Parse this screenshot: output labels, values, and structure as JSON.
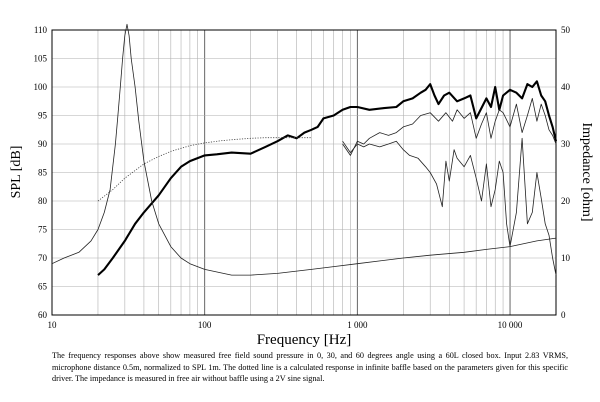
{
  "chart_data": {
    "type": "line",
    "xlabel": "Frequency [Hz]",
    "ylabel": "SPL [dB]",
    "y2label": "Impedance [ohm]",
    "x_scale": "log",
    "xlim": [
      10,
      20000
    ],
    "ylim": [
      60,
      110
    ],
    "y2lim": [
      0,
      50
    ],
    "x_ticks": [
      10,
      100,
      1000,
      10000
    ],
    "x_tick_labels": [
      "10",
      "100",
      "1 000",
      "10 000"
    ],
    "y_ticks": [
      60,
      65,
      70,
      75,
      80,
      85,
      90,
      95,
      100,
      105,
      110
    ],
    "y2_ticks": [
      0,
      10,
      20,
      30,
      40,
      50
    ],
    "grid": true,
    "series": [
      {
        "axis": "left",
        "style": "solid-thick",
        "x": [
          20,
          22,
          25,
          30,
          35,
          40,
          50,
          60,
          70,
          80,
          100,
          120,
          150,
          200,
          250,
          300,
          350,
          400,
          450,
          500,
          550,
          600,
          700,
          800,
          900,
          1000,
          1200,
          1500,
          1800,
          2000,
          2300,
          2600,
          2800,
          3000,
          3200,
          3400,
          3700,
          4000,
          4500,
          5000,
          5500,
          6000,
          7000,
          7500,
          8000,
          8500,
          9000,
          10000,
          11000,
          12000,
          13000,
          14000,
          15000,
          16000,
          17000,
          18000,
          19000,
          20000
        ],
        "y": [
          67,
          68,
          70,
          73,
          76,
          78,
          81,
          84,
          86,
          87,
          88,
          88.2,
          88.5,
          88.3,
          89.5,
          90.5,
          91.5,
          91,
          92,
          92.5,
          93,
          94.5,
          95,
          96,
          96.5,
          96.5,
          96,
          96.3,
          96.5,
          97.5,
          98,
          99,
          99.5,
          100.5,
          98.5,
          97,
          98.5,
          99,
          97.5,
          98,
          98.5,
          94.5,
          98,
          96.5,
          100,
          96,
          98.5,
          99.5,
          99,
          98,
          100.5,
          100,
          101,
          98.5,
          97.5,
          95,
          93,
          90.5
        ]
      },
      {
        "axis": "left",
        "style": "solid-thin",
        "x": [
          800,
          900,
          1000,
          1100,
          1200,
          1400,
          1600,
          1800,
          2000,
          2300,
          2600,
          3000,
          3400,
          3800,
          4200,
          4500,
          5000,
          5500,
          6000,
          6500,
          7000,
          7500,
          8000,
          8500,
          9000,
          10000,
          11000,
          12000,
          13000,
          14000,
          15000,
          16000,
          17000,
          18000,
          19000,
          20000
        ],
        "y": [
          90,
          88,
          90.5,
          90,
          91,
          92,
          91.5,
          92,
          93,
          93.5,
          95,
          95.5,
          94,
          95.5,
          94,
          96,
          94.5,
          95.5,
          91,
          93.5,
          95.5,
          91,
          94,
          96,
          95.5,
          93,
          97,
          92,
          95,
          98,
          94,
          97,
          95,
          92.5,
          91.5,
          90
        ]
      },
      {
        "axis": "left",
        "style": "solid-thin",
        "x": [
          800,
          900,
          1000,
          1100,
          1200,
          1400,
          1600,
          1800,
          2000,
          2200,
          2500,
          2800,
          3000,
          3300,
          3600,
          3800,
          4000,
          4300,
          4500,
          5000,
          5500,
          6000,
          6500,
          7000,
          7500,
          8000,
          8500,
          9000,
          9500,
          10000,
          11000,
          12000,
          13000,
          14000,
          15000,
          16000,
          17000,
          18000,
          19000,
          20000
        ],
        "y": [
          90.5,
          88.5,
          90,
          89.5,
          90,
          89.5,
          90,
          90.5,
          89,
          88,
          87.5,
          86,
          85,
          83,
          79,
          87,
          83.5,
          89,
          87.5,
          86,
          88,
          84,
          80,
          86.5,
          79,
          82,
          87,
          85,
          76,
          72,
          78,
          91,
          76,
          78,
          85,
          80.5,
          76,
          74,
          70,
          67
        ]
      },
      {
        "axis": "left",
        "style": "dotted",
        "x": [
          20,
          25,
          30,
          40,
          50,
          60,
          80,
          100,
          130,
          160,
          200,
          250,
          300,
          350,
          400,
          450,
          500
        ],
        "y": [
          80,
          82,
          84,
          86.5,
          87.8,
          88.7,
          89.7,
          90.2,
          90.6,
          90.8,
          91,
          91.1,
          91.1,
          91.1,
          91.1,
          91.1,
          91.1
        ]
      },
      {
        "axis": "right",
        "style": "solid-thin",
        "x": [
          10,
          12,
          15,
          18,
          20,
          22,
          24,
          26,
          27,
          28,
          29,
          30,
          31,
          32,
          33,
          35,
          37,
          40,
          45,
          50,
          60,
          70,
          80,
          100,
          150,
          200,
          300,
          500,
          700,
          1000,
          2000,
          3000,
          5000,
          7000,
          10000,
          15000,
          20000
        ],
        "y": [
          9,
          10,
          11,
          13,
          15,
          18,
          22,
          30,
          35,
          40,
          45,
          49,
          51,
          49,
          45,
          40,
          34,
          27,
          20,
          16,
          12,
          10,
          9,
          8,
          7,
          7,
          7.3,
          8,
          8.5,
          9,
          10,
          10.5,
          11,
          11.5,
          12,
          13,
          13.5
        ]
      }
    ]
  },
  "caption": "The frequency responses above show measured free field sound pressure in 0, 30, and 60 degrees angle using a 60L closed box. Input 2.83 VRMS, microphone distance 0.5m, normalized to SPL 1m. The dotted line is a calculated response in infinite baffle based on the parameters given for this specific driver. The impedance is measured in free air without baffle using a 2V sine signal."
}
